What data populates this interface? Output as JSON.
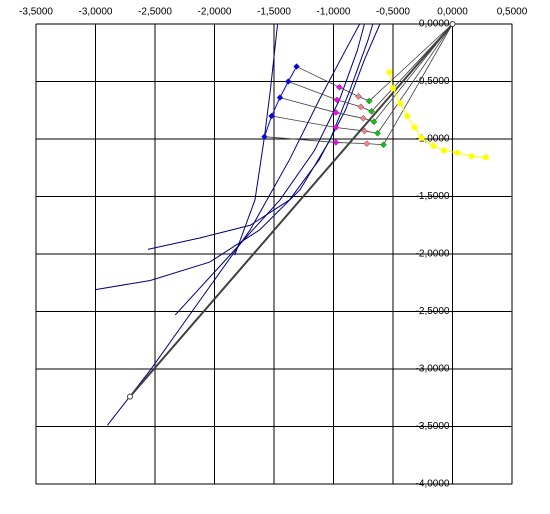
{
  "chart_data": {
    "type": "scatter",
    "xlim": [
      -3.5,
      0.5
    ],
    "ylim": [
      -4,
      0
    ],
    "xticks": [
      {
        "value": -3.5,
        "label": "-3,5000"
      },
      {
        "value": -3,
        "label": "-3,0000"
      },
      {
        "value": -2.5,
        "label": "-2,5000"
      },
      {
        "value": -2,
        "label": "-2,0000"
      },
      {
        "value": -1.5,
        "label": "-1,5000"
      },
      {
        "value": -1,
        "label": "-1,0000"
      },
      {
        "value": -0.5,
        "label": "-0,5000"
      },
      {
        "value": 0,
        "label": "0,0000"
      },
      {
        "value": 0.5,
        "label": "0,5000"
      }
    ],
    "yticks": [
      {
        "value": 0,
        "label": "0,0000"
      },
      {
        "value": -0.5,
        "label": "-0,5000"
      },
      {
        "value": -1,
        "label": "-1,0000"
      },
      {
        "value": -1.5,
        "label": "-1,5000"
      },
      {
        "value": -2,
        "label": "-2,0000"
      },
      {
        "value": -2.5,
        "label": "-2,5000"
      },
      {
        "value": -3,
        "label": "-3,0000"
      },
      {
        "value": -3.5,
        "label": "-3,5000"
      },
      {
        "value": -4,
        "label": "-4,0000"
      }
    ],
    "grid": true,
    "series": [
      {
        "color": "#000080",
        "marker": "none",
        "width": 1,
        "x": [
          -2.9,
          -2.54,
          -2.12,
          -1.7,
          -1.37,
          -1.12,
          -0.9,
          -0.78
        ],
        "values": [
          -3.49,
          -3.01,
          -2.4,
          -1.79,
          -1.18,
          -0.66,
          -0.23,
          0
        ]
      },
      {
        "color": "#000080",
        "marker": "none",
        "width": 1,
        "x": [
          -2.33,
          -1.87,
          -1.45,
          -1.16,
          -0.95,
          -0.8,
          -0.74
        ],
        "values": [
          -2.53,
          -2.01,
          -1.53,
          -1.1,
          -0.66,
          -0.23,
          0
        ]
      },
      {
        "color": "#000080",
        "marker": "none",
        "width": 1,
        "x": [
          -3.0,
          -2.54,
          -2.04,
          -1.62,
          -1.28,
          -1.03,
          -0.86,
          -0.71,
          -0.67
        ],
        "values": [
          -2.31,
          -2.23,
          -2.07,
          -1.79,
          -1.44,
          -1.01,
          -0.57,
          -0.14,
          0
        ]
      },
      {
        "color": "#000080",
        "marker": "none",
        "width": 1,
        "x": [
          -2.56,
          -2.12,
          -1.7,
          -1.37,
          -1.12,
          -0.9,
          -0.74,
          -0.61
        ],
        "values": [
          -1.96,
          -1.86,
          -1.75,
          -1.53,
          -1.18,
          -0.75,
          -0.31,
          0
        ]
      },
      {
        "color": "#000080",
        "marker": "none",
        "width": 1,
        "x": [
          -1.83,
          -1.66,
          -1.58,
          -1.53,
          -1.47
        ],
        "values": [
          -2.01,
          -1.53,
          -0.98,
          -0.57,
          0
        ]
      },
      {
        "color": "#404040",
        "marker": "none",
        "width": 0.8,
        "x": [
          0,
          -0.7,
          -0.79,
          -0.95,
          -1.31
        ],
        "values": [
          0,
          -0.67,
          -0.63,
          -0.55,
          -0.37
        ]
      },
      {
        "color": "#404040",
        "marker": "none",
        "width": 0.8,
        "x": [
          0,
          -0.68,
          -0.77,
          -0.97,
          -1.38
        ],
        "values": [
          0,
          -0.76,
          -0.72,
          -0.66,
          -0.5
        ]
      },
      {
        "color": "#404040",
        "marker": "none",
        "width": 0.8,
        "x": [
          0,
          -0.66,
          -0.75,
          -0.98,
          -1.45
        ],
        "values": [
          0,
          -0.85,
          -0.82,
          -0.77,
          -0.64
        ]
      },
      {
        "color": "#404040",
        "marker": "none",
        "width": 0.8,
        "x": [
          0,
          -0.63,
          -0.74,
          -0.98,
          -1.52
        ],
        "values": [
          0,
          -0.95,
          -0.93,
          -0.9,
          -0.8
        ]
      },
      {
        "color": "#404040",
        "marker": "none",
        "width": 0.8,
        "x": [
          0,
          -0.58,
          -0.72,
          -0.98,
          -1.58
        ],
        "values": [
          0,
          -1.05,
          -1.04,
          -1.03,
          -0.98
        ]
      },
      {
        "color": "#404040",
        "marker": "circle",
        "width": 2,
        "x": [
          0,
          -2.71
        ],
        "values": [
          0,
          -3.24
        ]
      },
      {
        "color": "#0000ff",
        "marker": "diamond",
        "width": 1,
        "x": [
          -1.31,
          -1.38,
          -1.45,
          -1.52,
          -1.58
        ],
        "values": [
          -0.37,
          -0.5,
          -0.64,
          -0.8,
          -0.98
        ]
      },
      {
        "color": "#ff00ff",
        "marker": "diamond",
        "width": 0,
        "x": [
          -0.95,
          -0.97,
          -0.98,
          -0.98,
          -0.98
        ],
        "values": [
          -0.55,
          -0.66,
          -0.77,
          -0.9,
          -1.03
        ]
      },
      {
        "color": "#ff8080",
        "marker": "diamond",
        "width": 0,
        "x": [
          -0.79,
          -0.77,
          -0.75,
          -0.74,
          -0.72
        ],
        "values": [
          -0.63,
          -0.72,
          -0.82,
          -0.93,
          -1.04
        ]
      },
      {
        "color": "#00cc00",
        "marker": "diamond",
        "width": 0,
        "x": [
          -0.7,
          -0.68,
          -0.66,
          -0.63,
          -0.58
        ],
        "values": [
          -0.67,
          -0.76,
          -0.85,
          -0.95,
          -1.05
        ]
      },
      {
        "color": "#ffff00",
        "marker": "circle",
        "width": 1,
        "x": [
          -0.53,
          -0.5,
          -0.44,
          -0.38,
          -0.32,
          -0.26,
          -0.16,
          -0.07,
          0.04,
          0.16,
          0.28
        ],
        "values": [
          -0.42,
          -0.56,
          -0.69,
          -0.8,
          -0.9,
          -0.99,
          -1.06,
          -1.1,
          -1.12,
          -1.15,
          -1.16
        ]
      }
    ]
  }
}
